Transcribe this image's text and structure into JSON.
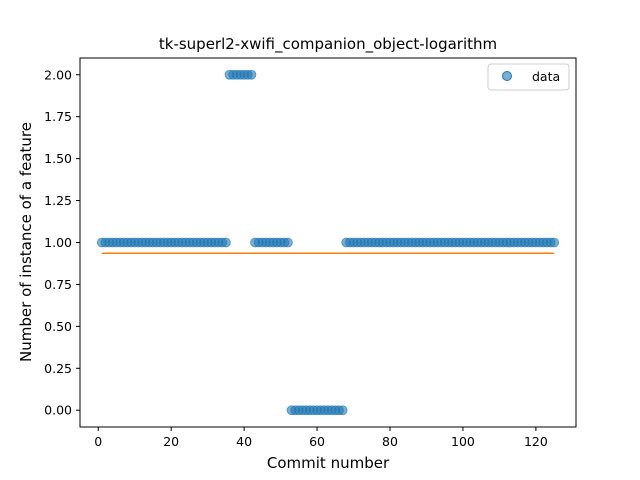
{
  "chart_data": {
    "type": "scatter",
    "title": "tk-superl2-xwifi_companion_object-logarithm",
    "xlabel": "Commit number",
    "ylabel": "Number of instance of a feature",
    "xlim": [
      -5,
      131
    ],
    "ylim": [
      -0.1,
      2.1
    ],
    "xticks": [
      "0",
      "20",
      "40",
      "60",
      "80",
      "100",
      "120"
    ],
    "yticks": [
      "0.00",
      "0.25",
      "0.50",
      "0.75",
      "1.00",
      "1.25",
      "1.50",
      "1.75",
      "2.00"
    ],
    "grid": false,
    "legend": {
      "placement": "top-right",
      "entries": [
        "data"
      ]
    },
    "series": [
      {
        "name": "data",
        "kind": "scatter",
        "color": "#1f77b4",
        "segments": [
          {
            "x_from": 1,
            "x_to": 35,
            "y": 1
          },
          {
            "x_from": 36,
            "x_to": 42,
            "y": 2
          },
          {
            "x_from": 43,
            "x_to": 52,
            "y": 1
          },
          {
            "x_from": 53,
            "x_to": 67,
            "y": 0
          },
          {
            "x_from": 68,
            "x_to": 125,
            "y": 1
          }
        ]
      },
      {
        "kind": "line",
        "color": "#ff7f0e",
        "x": [
          1,
          125
        ],
        "y": [
          0.936,
          0.936
        ]
      }
    ]
  }
}
